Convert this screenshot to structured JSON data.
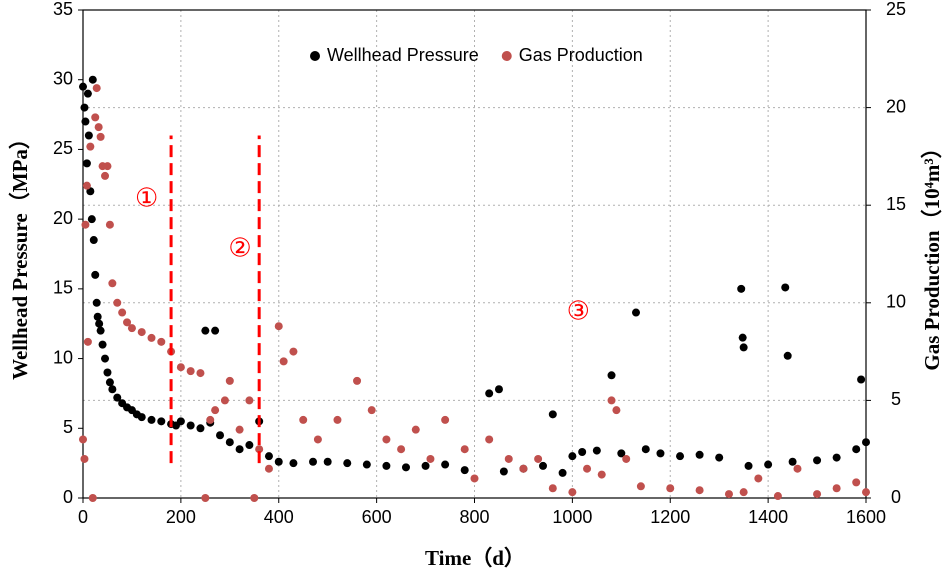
{
  "chart_data": {
    "type": "scatter",
    "xlabel": "Time（d）",
    "ylabel": "Wellhead Pressure（MPa）",
    "y2label": "Gas Production（10⁴m³）",
    "xlim": [
      0,
      1600
    ],
    "xticks": [
      0,
      200,
      400,
      600,
      800,
      1000,
      1200,
      1400,
      1600
    ],
    "ylim": [
      0,
      35
    ],
    "yticks": [
      0,
      5,
      10,
      15,
      20,
      25,
      30,
      35
    ],
    "y2lim": [
      0,
      25
    ],
    "y2ticks": [
      0,
      5,
      10,
      15,
      20,
      25
    ],
    "grid": true,
    "legend": "upper center",
    "boundaries": [
      180,
      360
    ],
    "boundary_range": [
      2.5,
      26
    ],
    "boundary_color": "#ff0000",
    "annotations": [
      {
        "text": "①",
        "x": 130,
        "y": 21.4
      },
      {
        "text": "②",
        "x": 321,
        "y": 17.8
      },
      {
        "text": "③",
        "x": 1012,
        "y": 13.3
      }
    ],
    "series": [
      {
        "name": "Wellhead Pressure",
        "color": "#000000",
        "axis": "y",
        "x": [
          0,
          3,
          5,
          8,
          10,
          12,
          15,
          18,
          20,
          22,
          25,
          28,
          30,
          33,
          36,
          40,
          45,
          50,
          55,
          60,
          70,
          80,
          90,
          100,
          110,
          120,
          140,
          160,
          180,
          190,
          200,
          220,
          240,
          250,
          260,
          270,
          280,
          300,
          320,
          340,
          360,
          380,
          400,
          430,
          470,
          500,
          540,
          580,
          620,
          660,
          700,
          740,
          780,
          830,
          850,
          860,
          900,
          940,
          960,
          980,
          1000,
          1020,
          1050,
          1080,
          1100,
          1130,
          1150,
          1180,
          1220,
          1260,
          1300,
          1345,
          1348,
          1350,
          1360,
          1400,
          1435,
          1440,
          1450,
          1500,
          1540,
          1580,
          1590,
          1600
        ],
        "values": [
          29.5,
          28,
          27,
          24,
          29,
          26,
          22,
          20,
          30,
          18.5,
          16,
          14,
          13,
          12.5,
          12,
          11,
          10,
          9,
          8.3,
          7.8,
          7.2,
          6.8,
          6.5,
          6.3,
          6,
          5.8,
          5.6,
          5.5,
          5.3,
          5.2,
          5.5,
          5.2,
          5,
          12,
          5.4,
          12,
          4.5,
          4,
          3.5,
          3.8,
          5.5,
          3,
          2.6,
          2.5,
          2.6,
          2.6,
          2.5,
          2.4,
          2.3,
          2.2,
          2.3,
          2.4,
          2,
          7.5,
          7.8,
          1.9,
          2.1,
          2.3,
          6,
          1.8,
          3,
          3.3,
          3.4,
          8.8,
          3.2,
          13.3,
          3.5,
          3.2,
          3,
          3.1,
          2.9,
          15,
          11.5,
          10.8,
          2.3,
          2.4,
          15.1,
          10.2,
          2.6,
          2.7,
          2.9,
          3.5,
          8.5,
          4
        ]
      },
      {
        "name": "Gas Production",
        "color": "#c0504d",
        "axis": "y2",
        "x": [
          0,
          3,
          5,
          8,
          10,
          15,
          20,
          25,
          28,
          32,
          36,
          40,
          45,
          50,
          55,
          60,
          70,
          80,
          90,
          100,
          120,
          140,
          160,
          180,
          200,
          220,
          240,
          250,
          260,
          270,
          290,
          300,
          320,
          340,
          350,
          360,
          380,
          400,
          410,
          430,
          450,
          480,
          520,
          560,
          590,
          620,
          650,
          680,
          710,
          740,
          780,
          800,
          830,
          870,
          900,
          930,
          960,
          1000,
          1030,
          1060,
          1080,
          1090,
          1110,
          1140,
          1200,
          1260,
          1320,
          1350,
          1380,
          1420,
          1460,
          1500,
          1540,
          1580,
          1600
        ],
        "values": [
          3,
          2,
          14,
          16,
          8,
          18,
          0,
          19.5,
          21,
          19,
          18.5,
          17,
          16.5,
          17,
          14,
          11,
          10,
          9.5,
          9,
          8.7,
          8.5,
          8.2,
          8,
          7.5,
          6.7,
          6.5,
          6.4,
          0,
          4,
          4.5,
          5,
          6,
          3.5,
          5,
          0,
          2.5,
          1.5,
          8.8,
          7,
          7.5,
          4,
          3,
          4,
          6,
          4.5,
          3,
          2.5,
          3.5,
          2,
          4,
          2.5,
          1,
          3,
          2,
          1.5,
          2,
          0.5,
          0.3,
          1.5,
          1.2,
          5,
          4.5,
          2,
          0.6,
          0.5,
          0.4,
          0.2,
          0.3,
          1,
          0.1,
          1.5,
          0.2,
          0.5,
          0.8,
          0.3
        ]
      }
    ]
  }
}
